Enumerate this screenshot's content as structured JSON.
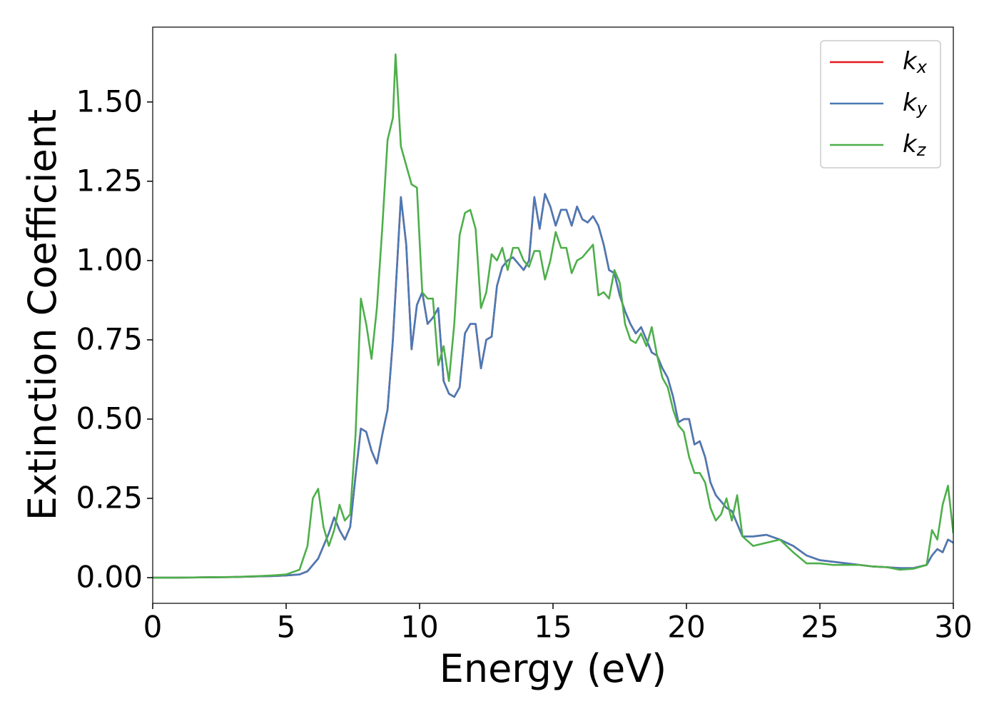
{
  "chart_data": {
    "type": "line",
    "xlabel": "Energy (eV)",
    "ylabel": "Extinction Coefficient",
    "xlim": [
      0,
      30
    ],
    "ylim": [
      -0.081,
      1.736
    ],
    "xticks": [
      0,
      5,
      10,
      15,
      20,
      25,
      30
    ],
    "yticks": [
      {
        "value": 0,
        "label": "0.00"
      },
      {
        "value": 0.25,
        "label": "0.25"
      },
      {
        "value": 0.5,
        "label": "0.50"
      },
      {
        "value": 0.75,
        "label": "0.75"
      },
      {
        "value": 1.0,
        "label": "1.00"
      },
      {
        "value": 1.25,
        "label": "1.25"
      },
      {
        "value": 1.5,
        "label": "1.50"
      }
    ],
    "grid": false,
    "legend": "upper right",
    "x": [
      0,
      1,
      2,
      3,
      4,
      4.5,
      5,
      5.5,
      5.8,
      6,
      6.2,
      6.4,
      6.6,
      6.8,
      7,
      7.2,
      7.4,
      7.6,
      7.8,
      8,
      8.2,
      8.4,
      8.6,
      8.8,
      9,
      9.1,
      9.3,
      9.5,
      9.7,
      9.9,
      10.1,
      10.3,
      10.5,
      10.7,
      10.9,
      11.1,
      11.3,
      11.5,
      11.7,
      11.9,
      12.1,
      12.3,
      12.5,
      12.7,
      12.9,
      13.1,
      13.3,
      13.5,
      13.7,
      13.9,
      14.1,
      14.3,
      14.5,
      14.7,
      14.9,
      15.1,
      15.3,
      15.5,
      15.7,
      15.9,
      16.1,
      16.3,
      16.5,
      16.7,
      16.9,
      17.1,
      17.3,
      17.5,
      17.7,
      17.9,
      18.1,
      18.3,
      18.5,
      18.7,
      18.9,
      19.1,
      19.3,
      19.5,
      19.7,
      19.9,
      20.1,
      20.3,
      20.5,
      20.7,
      20.9,
      21.1,
      21.3,
      21.5,
      21.7,
      21.9,
      22.1,
      22.5,
      23,
      23.5,
      24,
      24.5,
      25,
      25.5,
      26,
      26.5,
      27,
      27.5,
      28,
      28.5,
      29,
      29.2,
      29.4,
      29.6,
      29.8,
      30
    ],
    "series": [
      {
        "name": "kx",
        "color": "#e41a1c",
        "values": [
          0,
          0,
          0.001,
          0.002,
          0.004,
          0.005,
          0.007,
          0.01,
          0.02,
          0.04,
          0.06,
          0.1,
          0.14,
          0.19,
          0.15,
          0.12,
          0.16,
          0.32,
          0.47,
          0.46,
          0.4,
          0.36,
          0.45,
          0.53,
          0.75,
          0.9,
          1.2,
          1.05,
          0.72,
          0.86,
          0.9,
          0.8,
          0.82,
          0.85,
          0.62,
          0.58,
          0.57,
          0.6,
          0.77,
          0.8,
          0.8,
          0.66,
          0.75,
          0.76,
          0.92,
          0.98,
          1.0,
          1.01,
          0.99,
          0.97,
          1.0,
          1.2,
          1.1,
          1.21,
          1.17,
          1.11,
          1.16,
          1.16,
          1.11,
          1.17,
          1.13,
          1.12,
          1.14,
          1.11,
          1.05,
          0.97,
          0.96,
          0.89,
          0.84,
          0.8,
          0.77,
          0.79,
          0.75,
          0.71,
          0.7,
          0.66,
          0.63,
          0.57,
          0.49,
          0.5,
          0.5,
          0.42,
          0.43,
          0.38,
          0.3,
          0.26,
          0.24,
          0.22,
          0.21,
          0.17,
          0.13,
          0.13,
          0.135,
          0.12,
          0.1,
          0.07,
          0.055,
          0.05,
          0.045,
          0.04,
          0.035,
          0.033,
          0.03,
          0.03,
          0.04,
          0.07,
          0.09,
          0.08,
          0.12,
          0.11
        ]
      },
      {
        "name": "ky",
        "color": "#4a7ab5",
        "values": [
          0,
          0,
          0.001,
          0.002,
          0.004,
          0.005,
          0.007,
          0.01,
          0.02,
          0.04,
          0.06,
          0.1,
          0.14,
          0.19,
          0.15,
          0.12,
          0.16,
          0.32,
          0.47,
          0.46,
          0.4,
          0.36,
          0.45,
          0.53,
          0.75,
          0.9,
          1.2,
          1.05,
          0.72,
          0.86,
          0.9,
          0.8,
          0.82,
          0.85,
          0.62,
          0.58,
          0.57,
          0.6,
          0.77,
          0.8,
          0.8,
          0.66,
          0.75,
          0.76,
          0.92,
          0.98,
          1.0,
          1.01,
          0.99,
          0.97,
          1.0,
          1.2,
          1.1,
          1.21,
          1.17,
          1.11,
          1.16,
          1.16,
          1.11,
          1.17,
          1.13,
          1.12,
          1.14,
          1.11,
          1.05,
          0.97,
          0.96,
          0.89,
          0.84,
          0.8,
          0.77,
          0.79,
          0.75,
          0.71,
          0.7,
          0.66,
          0.63,
          0.57,
          0.49,
          0.5,
          0.5,
          0.42,
          0.43,
          0.38,
          0.3,
          0.26,
          0.24,
          0.22,
          0.21,
          0.17,
          0.13,
          0.13,
          0.135,
          0.12,
          0.1,
          0.07,
          0.055,
          0.05,
          0.045,
          0.04,
          0.035,
          0.033,
          0.03,
          0.03,
          0.04,
          0.07,
          0.09,
          0.08,
          0.12,
          0.11
        ]
      },
      {
        "name": "kz",
        "color": "#4daf4a",
        "values": [
          0,
          0,
          0.001,
          0.002,
          0.005,
          0.007,
          0.01,
          0.025,
          0.1,
          0.25,
          0.28,
          0.16,
          0.1,
          0.15,
          0.23,
          0.18,
          0.2,
          0.45,
          0.88,
          0.8,
          0.69,
          0.85,
          1.1,
          1.38,
          1.45,
          1.65,
          1.36,
          1.3,
          1.24,
          1.23,
          0.9,
          0.88,
          0.88,
          0.67,
          0.73,
          0.62,
          0.8,
          1.08,
          1.15,
          1.16,
          1.1,
          0.85,
          0.9,
          1.02,
          1.0,
          1.04,
          0.97,
          1.04,
          1.04,
          1.0,
          0.98,
          1.03,
          1.03,
          0.94,
          1.0,
          1.09,
          1.04,
          1.04,
          0.96,
          1.0,
          1.01,
          1.03,
          1.05,
          0.89,
          0.9,
          0.88,
          0.97,
          0.93,
          0.8,
          0.75,
          0.74,
          0.77,
          0.73,
          0.79,
          0.7,
          0.63,
          0.6,
          0.53,
          0.48,
          0.46,
          0.38,
          0.33,
          0.33,
          0.3,
          0.22,
          0.18,
          0.2,
          0.25,
          0.18,
          0.26,
          0.13,
          0.1,
          0.11,
          0.12,
          0.08,
          0.045,
          0.045,
          0.04,
          0.04,
          0.04,
          0.035,
          0.033,
          0.025,
          0.028,
          0.04,
          0.15,
          0.12,
          0.23,
          0.29,
          0.14
        ]
      }
    ]
  }
}
